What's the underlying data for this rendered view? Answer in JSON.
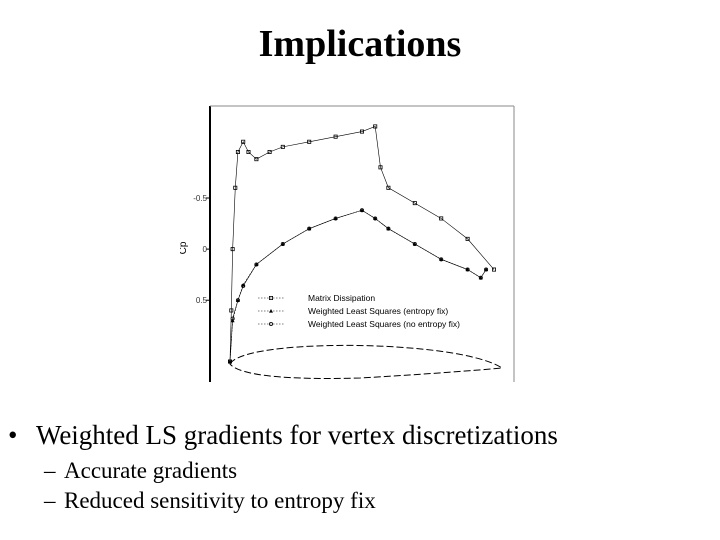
{
  "slide": {
    "title": "Implications",
    "bullet_marker": "•",
    "sub_marker": "–",
    "bullets": [
      {
        "text": "Weighted LS gradients for vertex discretizations",
        "sub": [
          "Accurate gradients",
          "Reduced sensitivity to entropy fix"
        ]
      }
    ]
  },
  "chart_data": {
    "type": "scatter",
    "ylabel": "Cp",
    "xlabel": "",
    "yticks": [
      "-0.5",
      "0",
      "0.5"
    ],
    "y_inverted": true,
    "ylim": [
      -1.4,
      1.3
    ],
    "xlim": [
      0,
      1
    ],
    "grid": false,
    "legend_position": "bottom-right",
    "series": [
      {
        "name": "Matrix Dissipation",
        "marker": "square",
        "x": [
          0.0,
          0.005,
          0.01,
          0.02,
          0.03,
          0.05,
          0.07,
          0.1,
          0.15,
          0.2,
          0.3,
          0.4,
          0.5,
          0.55,
          0.57,
          0.6,
          0.7,
          0.8,
          0.9,
          1.0
        ],
        "y": [
          1.1,
          0.6,
          0.0,
          -0.6,
          -0.95,
          -1.05,
          -0.95,
          -0.88,
          -0.95,
          -1.0,
          -1.05,
          -1.1,
          -1.15,
          -1.2,
          -0.8,
          -0.6,
          -0.45,
          -0.3,
          -0.1,
          0.2
        ]
      },
      {
        "name": "Weighted Least Squares (entropy fix)",
        "marker": "triangle",
        "x": [
          0.0,
          0.01,
          0.03,
          0.05,
          0.1,
          0.2,
          0.3,
          0.4,
          0.5,
          0.55,
          0.6,
          0.7,
          0.8,
          0.9,
          0.95,
          0.97
        ],
        "y": [
          1.1,
          0.7,
          0.5,
          0.35,
          0.15,
          -0.05,
          -0.2,
          -0.3,
          -0.38,
          -0.3,
          -0.2,
          -0.05,
          0.1,
          0.2,
          0.28,
          0.2
        ]
      },
      {
        "name": "Weighted Least Squares (no entropy fix)",
        "marker": "circle",
        "x": [
          0.0,
          0.01,
          0.03,
          0.05,
          0.1,
          0.2,
          0.3,
          0.4,
          0.5,
          0.55,
          0.6,
          0.7,
          0.8,
          0.9,
          0.95,
          0.97
        ],
        "y": [
          1.1,
          0.68,
          0.5,
          0.36,
          0.15,
          -0.05,
          -0.2,
          -0.3,
          -0.38,
          -0.3,
          -0.2,
          -0.05,
          0.1,
          0.2,
          0.28,
          0.2
        ]
      }
    ]
  }
}
